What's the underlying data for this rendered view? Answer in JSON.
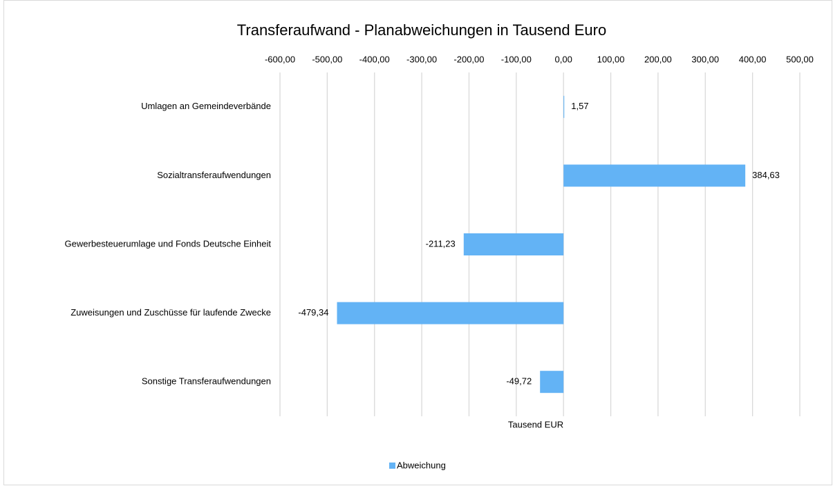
{
  "chart_data": {
    "type": "barh",
    "title": "Transferaufwand - Planabweichungen in Tausend Euro",
    "x_label": "Tausend EUR",
    "categories": [
      "Umlagen an Gemeindeverbände",
      "Sozialtransferaufwendungen",
      "Gewerbesteuerumlage und Fonds Deutsche Einheit",
      "Zuweisungen und Zuschüsse für laufende Zwecke",
      "Sonstige Transferaufwendungen"
    ],
    "series": [
      {
        "name": "Abweichung",
        "color": "#63b3f5",
        "values": [
          1.57,
          384.63,
          -211.23,
          -479.34,
          -49.72
        ],
        "value_labels": [
          "1,57",
          "384,63",
          "-211,23",
          "-479,34",
          "-49,72"
        ]
      }
    ],
    "xlim": [
      -600,
      500
    ],
    "xticks": [
      {
        "value": -600,
        "label": "-600,00"
      },
      {
        "value": -500,
        "label": "-500,00"
      },
      {
        "value": -400,
        "label": "-400,00"
      },
      {
        "value": -300,
        "label": "-300,00"
      },
      {
        "value": -200,
        "label": "-200,00"
      },
      {
        "value": -100,
        "label": "-100,00"
      },
      {
        "value": 0,
        "label": "0,00"
      },
      {
        "value": 100,
        "label": "100,00"
      },
      {
        "value": 200,
        "label": "200,00"
      },
      {
        "value": 300,
        "label": "300,00"
      },
      {
        "value": 400,
        "label": "400,00"
      },
      {
        "value": 500,
        "label": "500,00"
      }
    ],
    "grid": true,
    "legend": "bottom"
  }
}
